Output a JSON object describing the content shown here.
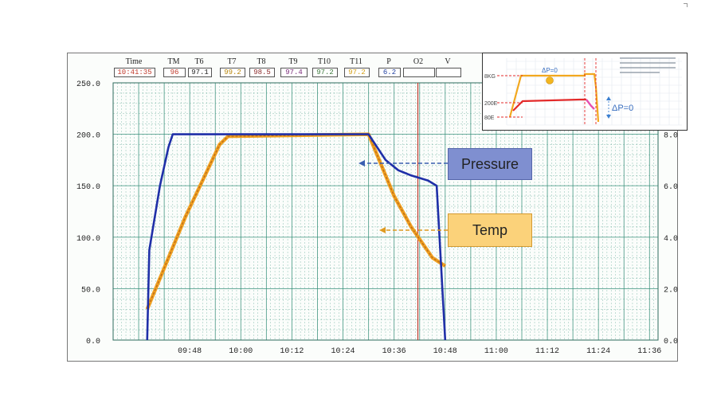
{
  "header": {
    "labels": [
      "Time",
      "TM",
      "T6",
      "T7",
      "T8",
      "T9",
      "T10",
      "T11",
      "P",
      "O2",
      "V"
    ],
    "values": [
      "10:41:35",
      "96",
      "97.1",
      "99.2",
      "98.5",
      "97.4",
      "97.2",
      "97.2",
      "6.2",
      "",
      ""
    ],
    "value_colors": [
      "#c0392b",
      "#c0392b",
      "#222222",
      "#b8860b",
      "#8b2a2a",
      "#7a2a7a",
      "#3c7a3c",
      "#d4a017",
      "#1f3fa0",
      "#222222",
      "#222222"
    ]
  },
  "colors": {
    "pressure": "#1f2fa8",
    "temp": "#f0a020",
    "temp_core": "#b5651d",
    "cursor": "#c0392b",
    "grid": "#2e8b74",
    "pressure_callout_bg": "#7f8fd0",
    "temp_callout_bg": "#fbd27a"
  },
  "callouts": {
    "pressure": "Pressure",
    "temp": "Temp"
  },
  "inset": {
    "labels": [
      "8KG",
      "200E",
      "80E"
    ],
    "dp_top": "ΔP=0",
    "dp_right": "ΔP=0"
  },
  "chart_data": {
    "type": "line",
    "x_ticks": [
      "09:48",
      "10:00",
      "10:12",
      "10:24",
      "10:36",
      "10:48",
      "11:00",
      "11:12",
      "11:24",
      "11:36"
    ],
    "y_ticks_left": [
      "0.0",
      "50.0",
      "100.0",
      "150.0",
      "200.0",
      "250.0"
    ],
    "y_ticks_right": [
      "0.0",
      "2.0",
      "4.0",
      "6.0",
      "8.0"
    ],
    "ylim_left": [
      0,
      250
    ],
    "ylim_right": [
      0,
      10
    ],
    "x_range_min": [
      570,
      698
    ],
    "grid": true,
    "cursor_x": "10:41:35",
    "series": [
      {
        "name": "Pressure",
        "axis": "right",
        "points": [
          [
            578,
            0
          ],
          [
            578.5,
            3.5
          ],
          [
            580,
            5.0
          ],
          [
            581,
            6.0
          ],
          [
            583,
            7.5
          ],
          [
            584,
            8.0
          ],
          [
            603,
            8.0
          ],
          [
            630,
            8.0
          ],
          [
            632,
            7.5
          ],
          [
            634,
            7.0
          ],
          [
            637,
            6.6
          ],
          [
            640,
            6.4
          ],
          [
            644,
            6.2
          ],
          [
            646,
            6.0
          ],
          [
            647,
            3.0
          ],
          [
            648,
            0
          ]
        ]
      },
      {
        "name": "Temp",
        "axis": "left",
        "points": [
          [
            578,
            30
          ],
          [
            587,
            120
          ],
          [
            595,
            190
          ],
          [
            597,
            198
          ],
          [
            630,
            200
          ],
          [
            633,
            170
          ],
          [
            636,
            140
          ],
          [
            640,
            110
          ],
          [
            645,
            80
          ],
          [
            648,
            72
          ]
        ]
      }
    ]
  }
}
